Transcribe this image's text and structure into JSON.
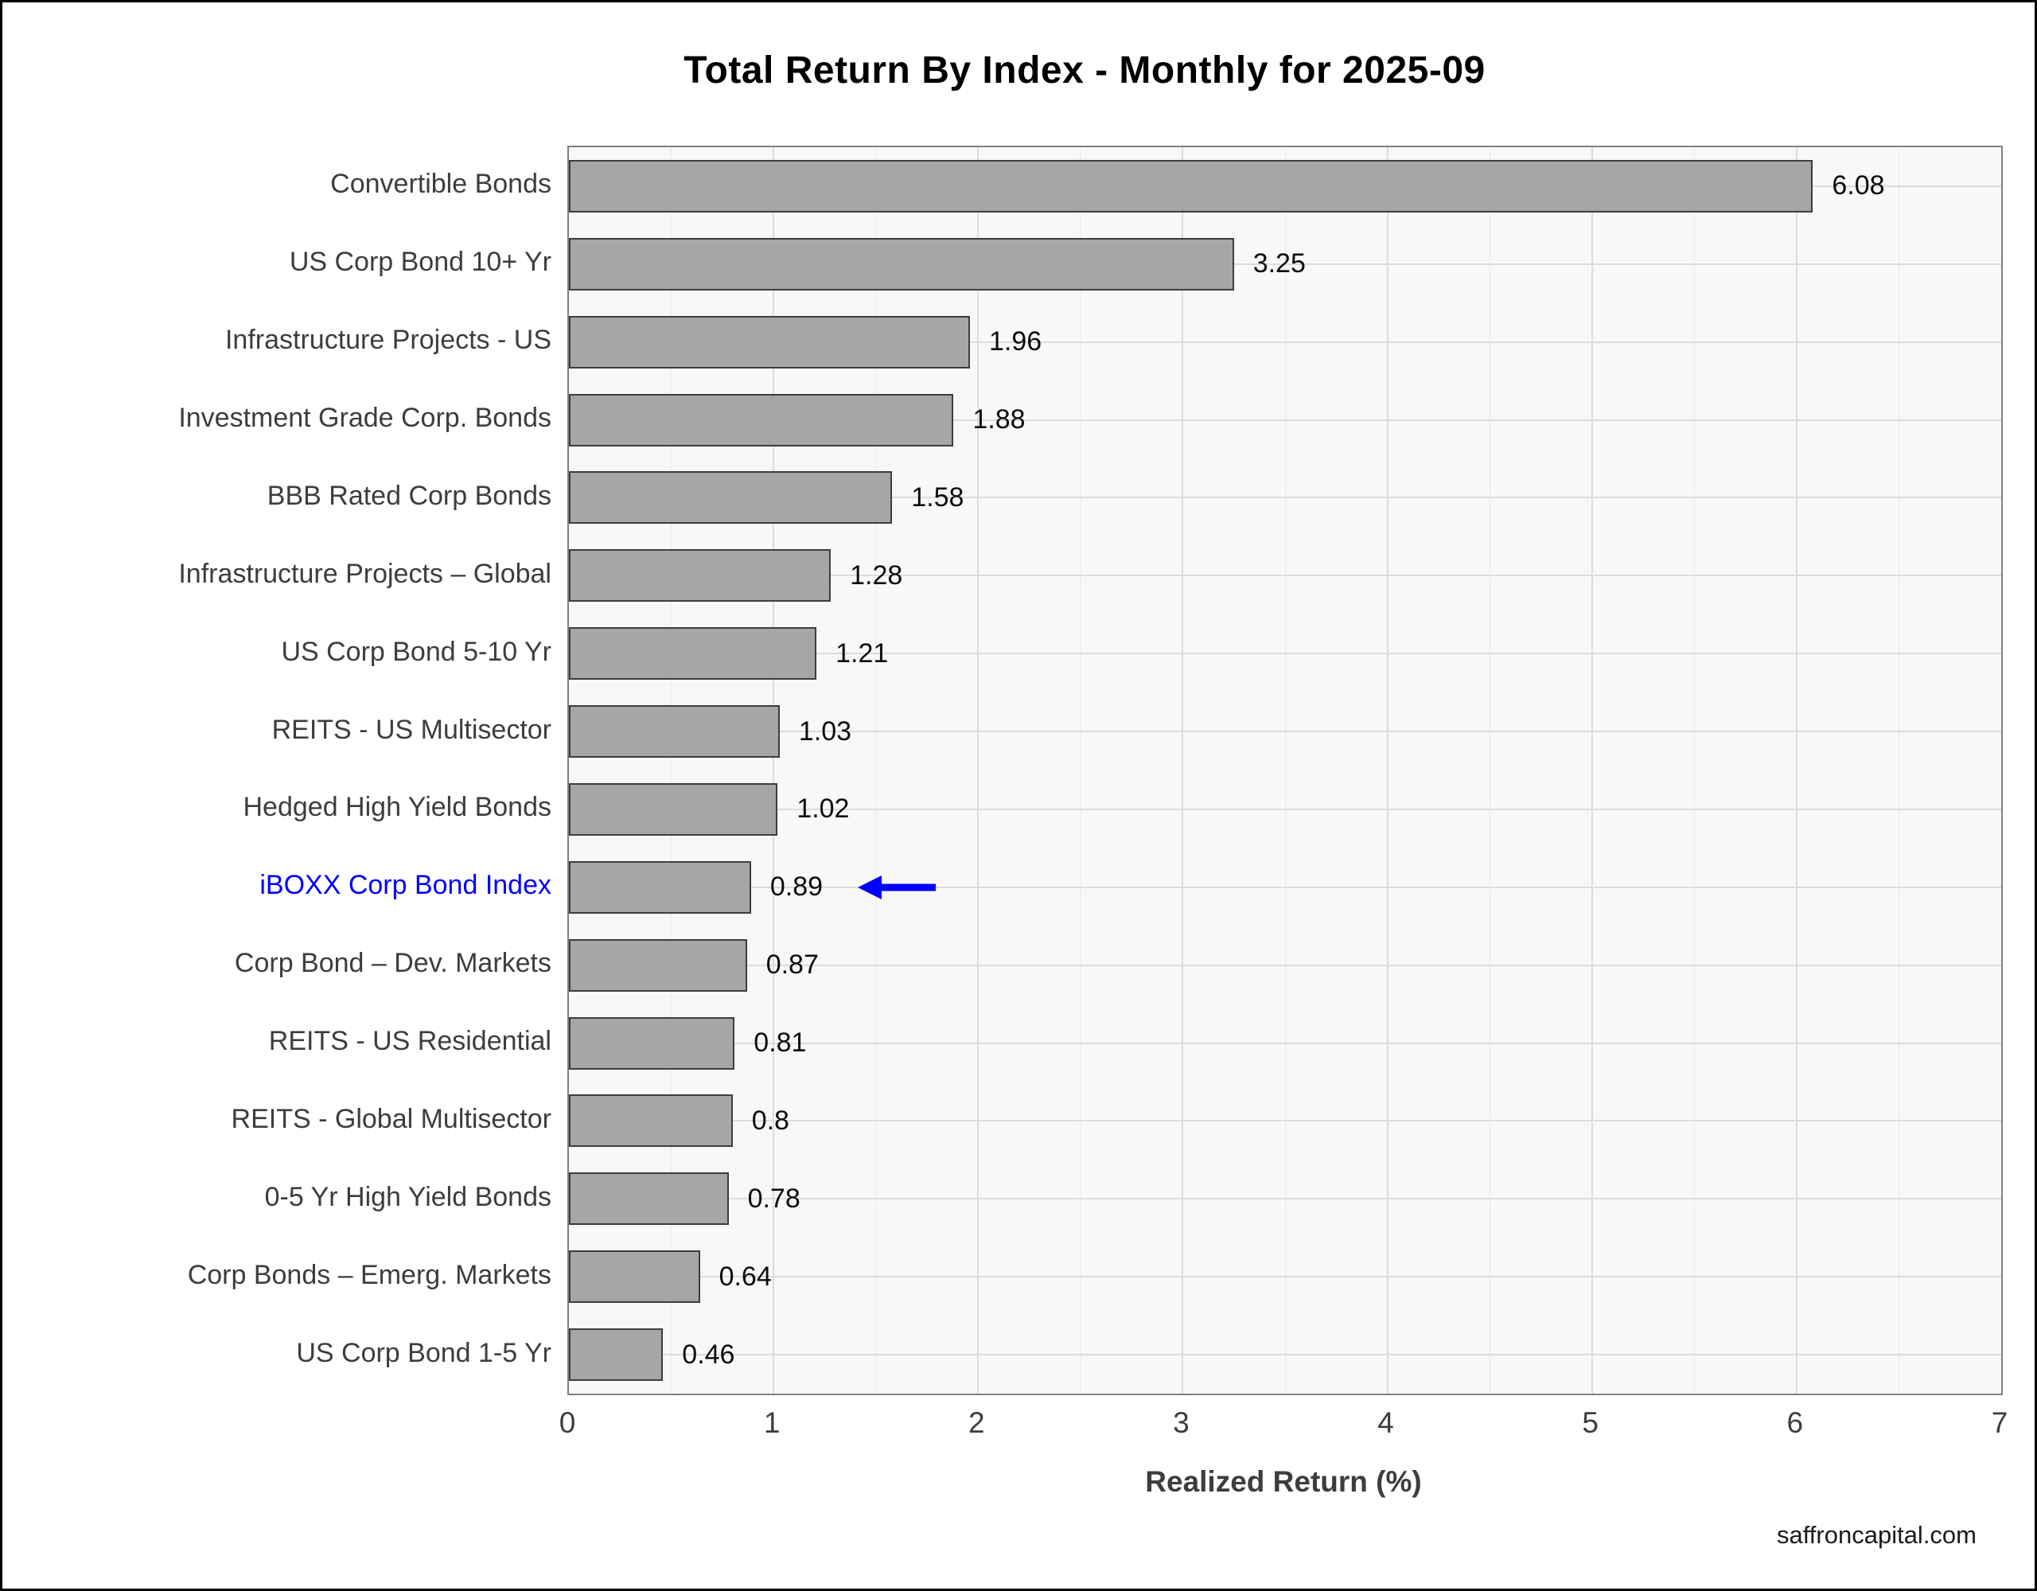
{
  "chart_data": {
    "type": "bar",
    "orientation": "horizontal",
    "title": "Total Return By Index - Monthly for 2025-09",
    "xlabel": "Realized Return (%)",
    "xlim": [
      0,
      7
    ],
    "xticks": [
      0,
      1,
      2,
      3,
      4,
      5,
      6,
      7
    ],
    "grid": "vertical major every 1 and minor every 0.5; horizontal line at each bar center",
    "legend": "none",
    "categories": [
      "Convertible Bonds",
      "US Corp Bond 10+ Yr",
      "Infrastructure Projects - US",
      "Investment Grade Corp. Bonds",
      "BBB Rated Corp Bonds",
      "Infrastructure Projects – Global",
      "US Corp Bond 5-10 Yr",
      "REITS - US Multisector",
      "Hedged High Yield Bonds",
      "iBOXX Corp Bond Index",
      "Corp Bond – Dev. Markets",
      "REITS - US Residential",
      "REITS - Global Multisector",
      "0-5 Yr High Yield Bonds",
      "Corp Bonds – Emerg. Markets",
      "US Corp Bond 1-5 Yr"
    ],
    "values": [
      6.08,
      3.25,
      1.96,
      1.88,
      1.58,
      1.28,
      1.21,
      1.03,
      1.02,
      0.89,
      0.87,
      0.81,
      0.8,
      0.78,
      0.64,
      0.46
    ],
    "value_labels": [
      "6.08",
      "3.25",
      "1.96",
      "1.88",
      "1.58",
      "1.28",
      "1.21",
      "1.03",
      "1.02",
      "0.89",
      "0.87",
      "0.81",
      "0.8",
      "0.78",
      "0.64",
      "0.46"
    ],
    "highlight_index": 9,
    "highlight_color": "#0000ff",
    "bar_color": "#a6a6a6",
    "bar_border_color": "#3d3d3d"
  },
  "footer": {
    "watermark": "saffroncapital.com"
  }
}
